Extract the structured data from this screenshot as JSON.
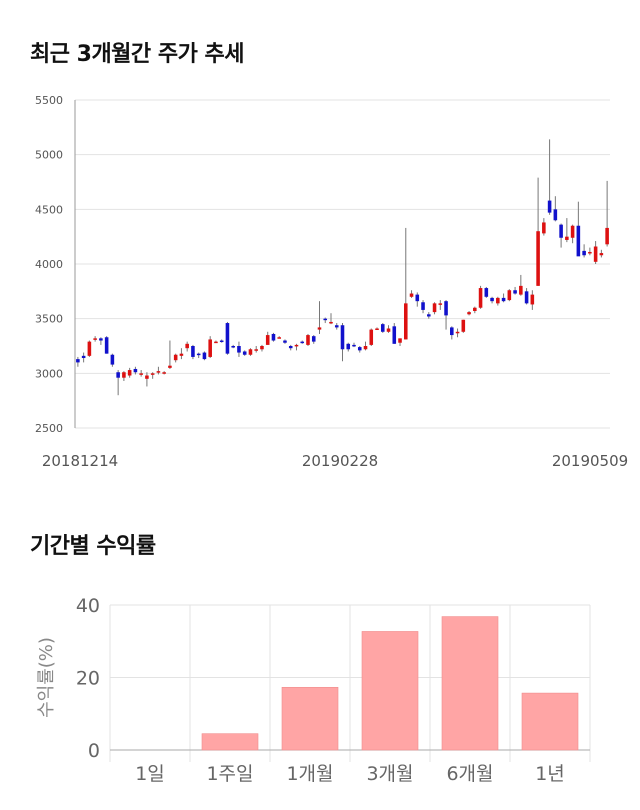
{
  "titles": {
    "price_trend": "최근 3개월간 주가 추세",
    "period_returns": "기간별 수익률"
  },
  "colors": {
    "up": "#dd1111",
    "down": "#1111cc",
    "bar": "#ffa5a5",
    "grid": "#e3e3e3",
    "axis": "#999999"
  },
  "chart_data": [
    {
      "type": "candlestick",
      "title": "",
      "ylim": [
        2500,
        5500
      ],
      "yticks": [
        2500,
        3000,
        3500,
        4000,
        4500,
        5000,
        5500
      ],
      "x_tick_labels": [
        "20181214",
        "20190228",
        "20190509"
      ],
      "grid": true,
      "up_color": "#dd1111",
      "down_color": "#1111cc",
      "candles": [
        [
          3130,
          3150,
          3060,
          3100
        ],
        [
          3160,
          3190,
          3100,
          3140
        ],
        [
          3160,
          3300,
          3150,
          3290
        ],
        [
          3310,
          3340,
          3290,
          3320
        ],
        [
          3320,
          3330,
          3260,
          3300
        ],
        [
          3330,
          3340,
          3180,
          3180
        ],
        [
          3170,
          3180,
          3060,
          3080
        ],
        [
          3010,
          3030,
          2800,
          2960
        ],
        [
          2960,
          3020,
          2930,
          3010
        ],
        [
          2980,
          3050,
          2960,
          3030
        ],
        [
          3040,
          3060,
          2990,
          3010
        ],
        [
          3000,
          3030,
          2970,
          3000
        ],
        [
          2950,
          3010,
          2880,
          2980
        ],
        [
          2990,
          3010,
          2950,
          3000
        ],
        [
          3010,
          3060,
          2990,
          3020
        ],
        [
          3000,
          3020,
          2990,
          3010
        ],
        [
          3050,
          3300,
          3040,
          3070
        ],
        [
          3120,
          3180,
          3100,
          3170
        ],
        [
          3160,
          3230,
          3130,
          3180
        ],
        [
          3230,
          3290,
          3200,
          3270
        ],
        [
          3250,
          3260,
          3130,
          3150
        ],
        [
          3180,
          3190,
          3140,
          3170
        ],
        [
          3190,
          3200,
          3120,
          3130
        ],
        [
          3150,
          3340,
          3140,
          3310
        ],
        [
          3290,
          3300,
          3280,
          3290
        ],
        [
          3300,
          3310,
          3280,
          3290
        ],
        [
          3460,
          3470,
          3170,
          3180
        ],
        [
          3250,
          3260,
          3230,
          3240
        ],
        [
          3250,
          3290,
          3150,
          3190
        ],
        [
          3200,
          3210,
          3160,
          3170
        ],
        [
          3170,
          3230,
          3160,
          3220
        ],
        [
          3210,
          3250,
          3190,
          3220
        ],
        [
          3220,
          3260,
          3200,
          3250
        ],
        [
          3260,
          3380,
          3260,
          3350
        ],
        [
          3360,
          3370,
          3290,
          3300
        ],
        [
          3330,
          3340,
          3320,
          3330
        ],
        [
          3300,
          3310,
          3270,
          3280
        ],
        [
          3250,
          3260,
          3210,
          3230
        ],
        [
          3250,
          3270,
          3210,
          3260
        ],
        [
          3290,
          3300,
          3270,
          3280
        ],
        [
          3260,
          3360,
          3250,
          3350
        ],
        [
          3340,
          3350,
          3270,
          3290
        ],
        [
          3400,
          3660,
          3360,
          3420
        ],
        [
          3500,
          3510,
          3460,
          3490
        ],
        [
          3470,
          3550,
          3450,
          3470
        ],
        [
          3440,
          3460,
          3400,
          3420
        ],
        [
          3440,
          3460,
          3110,
          3220
        ],
        [
          3270,
          3280,
          3200,
          3220
        ],
        [
          3260,
          3280,
          3240,
          3250
        ],
        [
          3240,
          3250,
          3190,
          3210
        ],
        [
          3220,
          3290,
          3210,
          3250
        ],
        [
          3260,
          3410,
          3250,
          3400
        ],
        [
          3410,
          3420,
          3400,
          3410
        ],
        [
          3450,
          3460,
          3370,
          3380
        ],
        [
          3380,
          3440,
          3370,
          3410
        ],
        [
          3430,
          3460,
          3270,
          3270
        ],
        [
          3280,
          3320,
          3250,
          3320
        ],
        [
          3310,
          4330,
          3310,
          3640
        ],
        [
          3700,
          3760,
          3690,
          3730
        ],
        [
          3720,
          3740,
          3610,
          3660
        ],
        [
          3650,
          3670,
          3550,
          3580
        ],
        [
          3540,
          3560,
          3500,
          3520
        ],
        [
          3560,
          3650,
          3540,
          3640
        ],
        [
          3630,
          3670,
          3580,
          3640
        ],
        [
          3660,
          3670,
          3400,
          3530
        ],
        [
          3420,
          3430,
          3310,
          3350
        ],
        [
          3370,
          3410,
          3330,
          3380
        ],
        [
          3380,
          3490,
          3370,
          3490
        ],
        [
          3540,
          3570,
          3530,
          3560
        ],
        [
          3570,
          3610,
          3550,
          3600
        ],
        [
          3600,
          3800,
          3590,
          3780
        ],
        [
          3780,
          3790,
          3690,
          3700
        ],
        [
          3690,
          3700,
          3640,
          3660
        ],
        [
          3640,
          3700,
          3620,
          3690
        ],
        [
          3690,
          3730,
          3650,
          3660
        ],
        [
          3670,
          3770,
          3660,
          3760
        ],
        [
          3760,
          3790,
          3720,
          3730
        ],
        [
          3720,
          3900,
          3710,
          3800
        ],
        [
          3750,
          3780,
          3630,
          3640
        ],
        [
          3630,
          3760,
          3580,
          3720
        ],
        [
          3800,
          4790,
          3800,
          4300
        ],
        [
          4280,
          4420,
          4260,
          4380
        ],
        [
          4580,
          5140,
          4450,
          4470
        ],
        [
          4500,
          4620,
          4390,
          4400
        ],
        [
          4360,
          4370,
          4150,
          4240
        ],
        [
          4220,
          4420,
          4200,
          4250
        ],
        [
          4240,
          4360,
          4190,
          4350
        ],
        [
          4350,
          4570,
          4100,
          4070
        ],
        [
          4120,
          4180,
          4060,
          4080
        ],
        [
          4100,
          4150,
          4080,
          4110
        ],
        [
          4020,
          4210,
          4000,
          4160
        ],
        [
          4080,
          4130,
          4060,
          4100
        ],
        [
          4180,
          4760,
          4160,
          4330
        ]
      ]
    },
    {
      "type": "bar",
      "title": "",
      "categories": [
        "1일",
        "1주일",
        "1개월",
        "3개월",
        "6개월",
        "1년"
      ],
      "values": [
        0,
        4.5,
        17.3,
        32.7,
        36.8,
        15.7
      ],
      "ylabel": "수익률(%)",
      "ylim": [
        0,
        40
      ],
      "yticks": [
        0,
        20,
        40
      ],
      "grid": true
    }
  ]
}
